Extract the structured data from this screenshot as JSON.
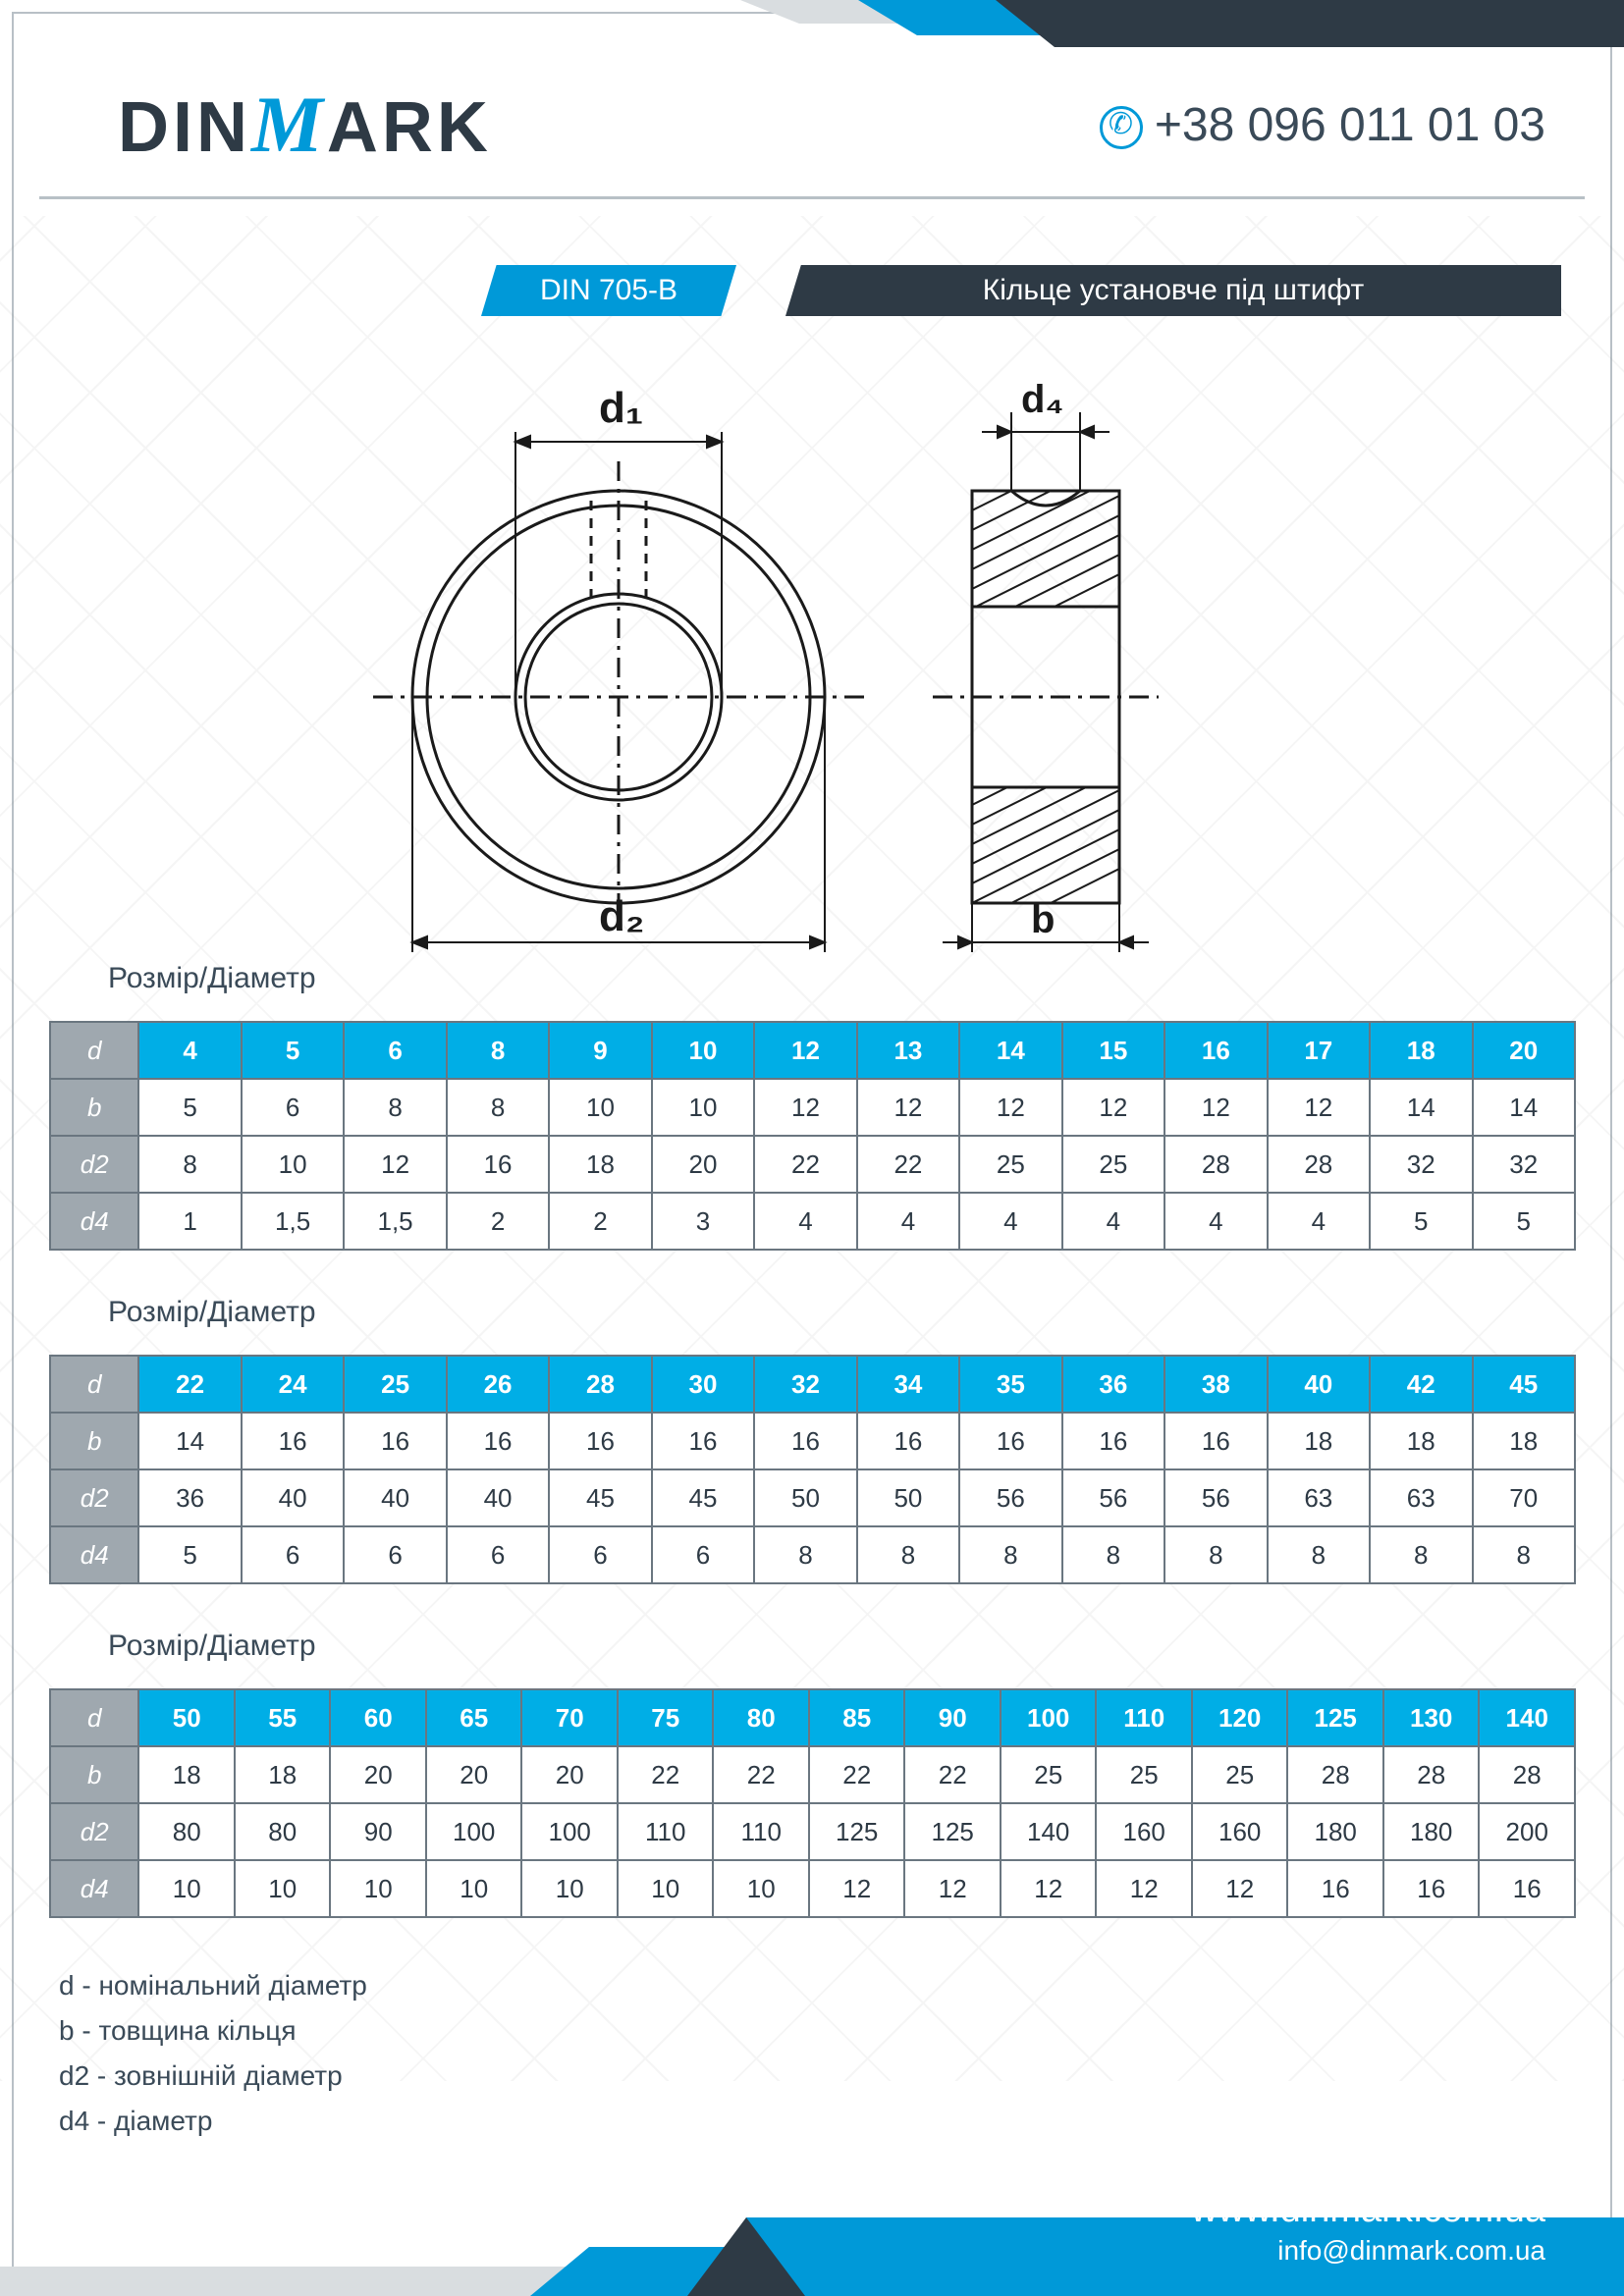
{
  "brand": {
    "name_part1": "DIN",
    "name_part2": "M",
    "name_part3": "ARK"
  },
  "contact": {
    "phone": "+38 096 011 01 03",
    "website": "www.dinmark.com.ua",
    "email": "info@dinmark.com.ua"
  },
  "title": {
    "din": "DIN 705-B",
    "product": "Кільце установче під штифт"
  },
  "drawing": {
    "labels": {
      "d1": "d₁",
      "d2": "d₂",
      "d4": "d₄",
      "b": "b"
    }
  },
  "section_label": "Розмір/Діаметр",
  "tables": {
    "row_headers": [
      "d",
      "b",
      "d2",
      "d4"
    ],
    "t1": {
      "d": [
        "4",
        "5",
        "6",
        "8",
        "9",
        "10",
        "12",
        "13",
        "14",
        "15",
        "16",
        "17",
        "18",
        "20"
      ],
      "b": [
        "5",
        "6",
        "8",
        "8",
        "10",
        "10",
        "12",
        "12",
        "12",
        "12",
        "12",
        "12",
        "14",
        "14"
      ],
      "d2": [
        "8",
        "10",
        "12",
        "16",
        "18",
        "20",
        "22",
        "22",
        "25",
        "25",
        "28",
        "28",
        "32",
        "32"
      ],
      "d4": [
        "1",
        "1,5",
        "1,5",
        "2",
        "2",
        "3",
        "4",
        "4",
        "4",
        "4",
        "4",
        "4",
        "5",
        "5"
      ]
    },
    "t2": {
      "d": [
        "22",
        "24",
        "25",
        "26",
        "28",
        "30",
        "32",
        "34",
        "35",
        "36",
        "38",
        "40",
        "42",
        "45"
      ],
      "b": [
        "14",
        "16",
        "16",
        "16",
        "16",
        "16",
        "16",
        "16",
        "16",
        "16",
        "16",
        "18",
        "18",
        "18"
      ],
      "d2": [
        "36",
        "40",
        "40",
        "40",
        "45",
        "45",
        "50",
        "50",
        "56",
        "56",
        "56",
        "63",
        "63",
        "70"
      ],
      "d4": [
        "5",
        "6",
        "6",
        "6",
        "6",
        "6",
        "8",
        "8",
        "8",
        "8",
        "8",
        "8",
        "8",
        "8"
      ]
    },
    "t3": {
      "d": [
        "50",
        "55",
        "60",
        "65",
        "70",
        "75",
        "80",
        "85",
        "90",
        "100",
        "110",
        "120",
        "125",
        "130",
        "140"
      ],
      "b": [
        "18",
        "18",
        "20",
        "20",
        "20",
        "22",
        "22",
        "22",
        "22",
        "25",
        "25",
        "25",
        "28",
        "28",
        "28"
      ],
      "d2": [
        "80",
        "80",
        "90",
        "100",
        "100",
        "110",
        "110",
        "125",
        "125",
        "140",
        "160",
        "160",
        "180",
        "180",
        "200"
      ],
      "d4": [
        "10",
        "10",
        "10",
        "10",
        "10",
        "10",
        "10",
        "12",
        "12",
        "12",
        "12",
        "12",
        "16",
        "16",
        "16"
      ]
    }
  },
  "legend": {
    "d": "d - номінальний діаметр",
    "b": "b - товщина кільця",
    "d2": "d2 - зовнішній діаметр",
    "d4": "d4 -  діаметр"
  },
  "colors": {
    "brand_blue": "#0099d8",
    "brand_dark": "#2e3a45",
    "table_header_blue": "#00aee6",
    "table_row_gray": "#9fa8af",
    "border_gray": "#6a7680",
    "light_gray": "#d9dde0"
  }
}
